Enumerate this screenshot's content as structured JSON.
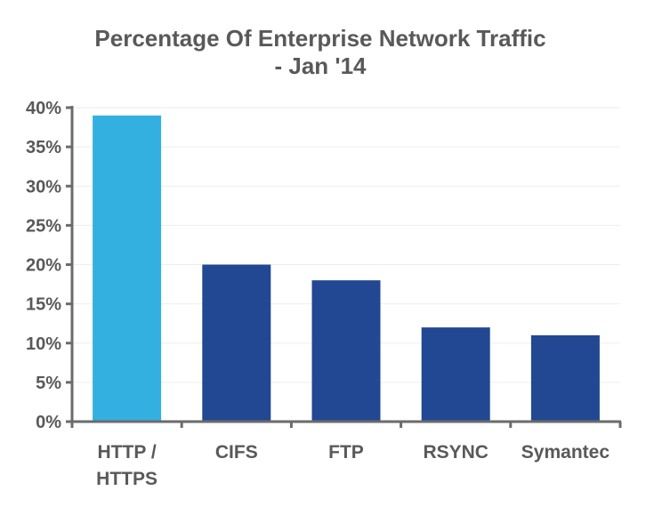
{
  "chart_data": {
    "type": "bar",
    "title": "Percentage Of Enterprise Network Traffic",
    "subtitle": "- Jan '14",
    "categories": [
      [
        "HTTP /",
        "HTTPS"
      ],
      [
        "CIFS"
      ],
      [
        "FTP"
      ],
      [
        "RSYNC"
      ],
      [
        "Symantec"
      ]
    ],
    "values": [
      39,
      20,
      18,
      12,
      11
    ],
    "bar_colors": [
      "#33B0DF",
      "#224893",
      "#224893",
      "#224893",
      "#224893"
    ],
    "ylim": [
      0,
      40
    ],
    "yticks": [
      0,
      5,
      10,
      15,
      20,
      25,
      30,
      35,
      40
    ],
    "ytick_labels": [
      "0%",
      "5%",
      "10%",
      "15%",
      "20%",
      "25%",
      "30%",
      "35%",
      "40%"
    ],
    "xlabel": "",
    "ylabel": "",
    "grid": true,
    "legend": "none"
  }
}
